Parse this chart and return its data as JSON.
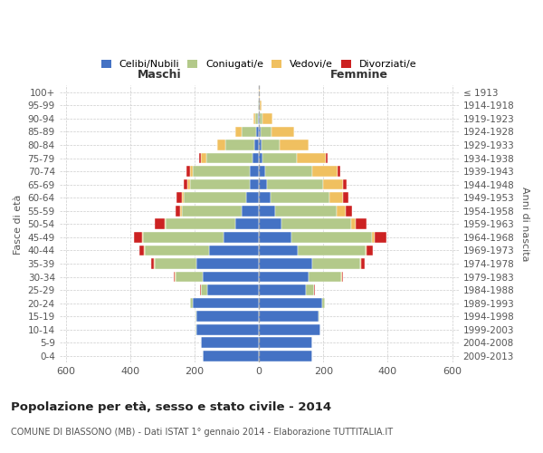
{
  "age_groups": [
    "0-4",
    "5-9",
    "10-14",
    "15-19",
    "20-24",
    "25-29",
    "30-34",
    "35-39",
    "40-44",
    "45-49",
    "50-54",
    "55-59",
    "60-64",
    "65-69",
    "70-74",
    "75-79",
    "80-84",
    "85-89",
    "90-94",
    "95-99",
    "100+"
  ],
  "birth_years": [
    "2009-2013",
    "2004-2008",
    "1999-2003",
    "1994-1998",
    "1989-1993",
    "1984-1988",
    "1979-1983",
    "1974-1978",
    "1969-1973",
    "1964-1968",
    "1959-1963",
    "1954-1958",
    "1949-1953",
    "1944-1948",
    "1939-1943",
    "1934-1938",
    "1929-1933",
    "1924-1928",
    "1919-1923",
    "1914-1918",
    "≤ 1913"
  ],
  "males": {
    "celibi": [
      175,
      180,
      195,
      195,
      205,
      160,
      175,
      195,
      155,
      110,
      75,
      55,
      40,
      30,
      30,
      20,
      15,
      10,
      3,
      1,
      0
    ],
    "coniugati": [
      0,
      1,
      2,
      2,
      10,
      20,
      85,
      130,
      200,
      250,
      215,
      185,
      195,
      185,
      175,
      145,
      90,
      45,
      10,
      2,
      0
    ],
    "vedovi": [
      0,
      0,
      0,
      0,
      0,
      1,
      1,
      1,
      2,
      3,
      4,
      4,
      5,
      8,
      10,
      15,
      25,
      20,
      5,
      1,
      0
    ],
    "divorziati": [
      0,
      0,
      0,
      0,
      0,
      2,
      4,
      8,
      15,
      25,
      30,
      15,
      15,
      10,
      10,
      5,
      1,
      0,
      0,
      0,
      0
    ]
  },
  "females": {
    "nubili": [
      165,
      165,
      190,
      185,
      195,
      145,
      155,
      165,
      120,
      100,
      70,
      50,
      35,
      25,
      20,
      12,
      8,
      5,
      3,
      1,
      0
    ],
    "coniugate": [
      0,
      1,
      2,
      3,
      10,
      25,
      100,
      150,
      210,
      250,
      215,
      190,
      185,
      175,
      145,
      105,
      55,
      35,
      8,
      2,
      0
    ],
    "vedove": [
      0,
      0,
      0,
      0,
      0,
      1,
      2,
      2,
      5,
      10,
      15,
      30,
      40,
      60,
      80,
      90,
      90,
      70,
      30,
      5,
      1
    ],
    "divorziate": [
      0,
      0,
      0,
      0,
      1,
      2,
      5,
      10,
      20,
      35,
      35,
      20,
      18,
      12,
      8,
      5,
      2,
      0,
      0,
      0,
      0
    ]
  },
  "colors": {
    "celibi": "#4472c4",
    "coniugati": "#b3c98a",
    "vedovi": "#f0c060",
    "divorziati": "#cc2222"
  },
  "xlim": 620,
  "title": "Popolazione per età, sesso e stato civile - 2014",
  "subtitle": "COMUNE DI BIASSONO (MB) - Dati ISTAT 1° gennaio 2014 - Elaborazione TUTTITALIA.IT",
  "xlabel_left": "Maschi",
  "xlabel_right": "Femmine",
  "ylabel": "Fasce di età",
  "ylabel_right": "Anni di nascita"
}
